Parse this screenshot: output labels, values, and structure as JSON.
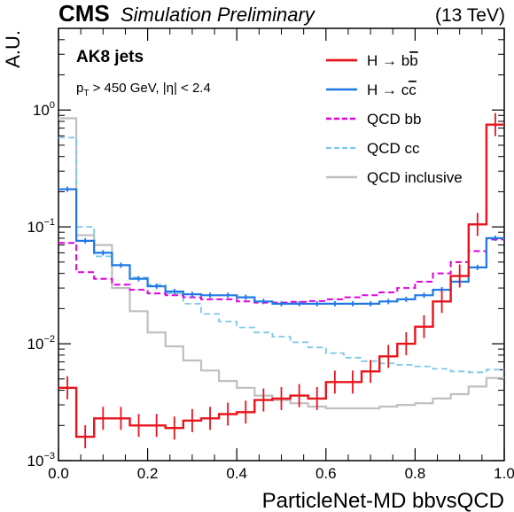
{
  "chart_data": {
    "type": "line",
    "header": {
      "experiment": "CMS",
      "status": "Simulation Preliminary",
      "energy": "(13 TeV)"
    },
    "annotations": {
      "jets": "AK8 jets",
      "pt_prefix": "p",
      "pt_sub": "T",
      "cut": " > 450 GeV, |η| < 2.4"
    },
    "xlabel": "ParticleNet-MD bbvsQCD",
    "ylabel": "A.U.",
    "xlim": [
      0,
      1
    ],
    "ylim": [
      0.001,
      5
    ],
    "log_y": true,
    "grid": false,
    "legend_position": "top-right",
    "x_ticks": [
      "0.0",
      "0.2",
      "0.4",
      "0.6",
      "0.8",
      "1.0"
    ],
    "y_ticks": [
      {
        "base": "10",
        "exp": "−3",
        "value": 0.001
      },
      {
        "base": "10",
        "exp": "−2",
        "value": 0.01
      },
      {
        "base": "10",
        "exp": "−1",
        "value": 0.1
      },
      {
        "base": "10",
        "exp": "0",
        "value": 1
      }
    ],
    "bin_edges": [
      0,
      0.04,
      0.08,
      0.12,
      0.16,
      0.2,
      0.24,
      0.28,
      0.32,
      0.36,
      0.4,
      0.44,
      0.48,
      0.52,
      0.56,
      0.6,
      0.64,
      0.68,
      0.72,
      0.76,
      0.8,
      0.84,
      0.88,
      0.92,
      0.96,
      1.0
    ],
    "series": [
      {
        "key": "qcd_inclusive",
        "name_main": "QCD inclusive",
        "name_sub": "",
        "name_tail": "",
        "color": "#bfbfbf",
        "dash": "",
        "width": 2.2,
        "errors": false,
        "values": [
          0.85,
          0.085,
          0.07,
          0.03,
          0.019,
          0.0125,
          0.0095,
          0.0072,
          0.0059,
          0.0048,
          0.0042,
          0.0036,
          0.0033,
          0.0031,
          0.0029,
          0.0028,
          0.0028,
          0.0028,
          0.0029,
          0.003,
          0.0031,
          0.0034,
          0.0037,
          0.0043,
          0.0051
        ]
      },
      {
        "key": "qcd_cc",
        "name_main": "QCD cc",
        "name_sub": "",
        "name_tail": "",
        "color": "#7ec8e8",
        "dash": "7,4",
        "width": 1.8,
        "errors": false,
        "values": [
          0.58,
          0.1,
          0.056,
          0.047,
          0.037,
          0.032,
          0.027,
          0.022,
          0.018,
          0.0155,
          0.0138,
          0.0125,
          0.0115,
          0.0103,
          0.0093,
          0.0083,
          0.0076,
          0.0071,
          0.0068,
          0.0066,
          0.0064,
          0.0061,
          0.0058,
          0.0057,
          0.006
        ]
      },
      {
        "key": "qcd_bb",
        "name_main": "QCD bb",
        "name_sub": "",
        "name_tail": "",
        "color": "#e000e0",
        "dash": "7,4",
        "width": 2.0,
        "errors": false,
        "values": [
          0.073,
          0.041,
          0.036,
          0.032,
          0.029,
          0.027,
          0.026,
          0.025,
          0.024,
          0.024,
          0.023,
          0.0225,
          0.0225,
          0.0228,
          0.0232,
          0.024,
          0.025,
          0.026,
          0.0275,
          0.03,
          0.034,
          0.04,
          0.05,
          0.062,
          0.078
        ]
      },
      {
        "key": "h_cc",
        "name_main": "H → c",
        "name_sub": "c",
        "name_tail": "",
        "color": "#1f78e6",
        "dash": "",
        "width": 2.2,
        "errors": true,
        "values": [
          0.21,
          0.076,
          0.06,
          0.047,
          0.036,
          0.031,
          0.028,
          0.0265,
          0.026,
          0.026,
          0.025,
          0.023,
          0.022,
          0.022,
          0.022,
          0.022,
          0.022,
          0.022,
          0.023,
          0.024,
          0.026,
          0.029,
          0.034,
          0.045,
          0.08
        ]
      },
      {
        "key": "h_bb",
        "name_main": "H → b",
        "name_sub": "b",
        "name_tail": "",
        "color": "#e8141c",
        "dash": "",
        "width": 2.4,
        "errors": true,
        "values": [
          0.0042,
          0.0016,
          0.0023,
          0.0023,
          0.002,
          0.002,
          0.0019,
          0.0022,
          0.0023,
          0.0025,
          0.0026,
          0.0033,
          0.0034,
          0.0036,
          0.0034,
          0.0047,
          0.0047,
          0.0058,
          0.0078,
          0.01,
          0.014,
          0.023,
          0.038,
          0.105,
          0.75
        ]
      }
    ],
    "legend_order": [
      "h_bb",
      "h_cc",
      "qcd_bb",
      "qcd_cc",
      "qcd_inclusive"
    ]
  }
}
